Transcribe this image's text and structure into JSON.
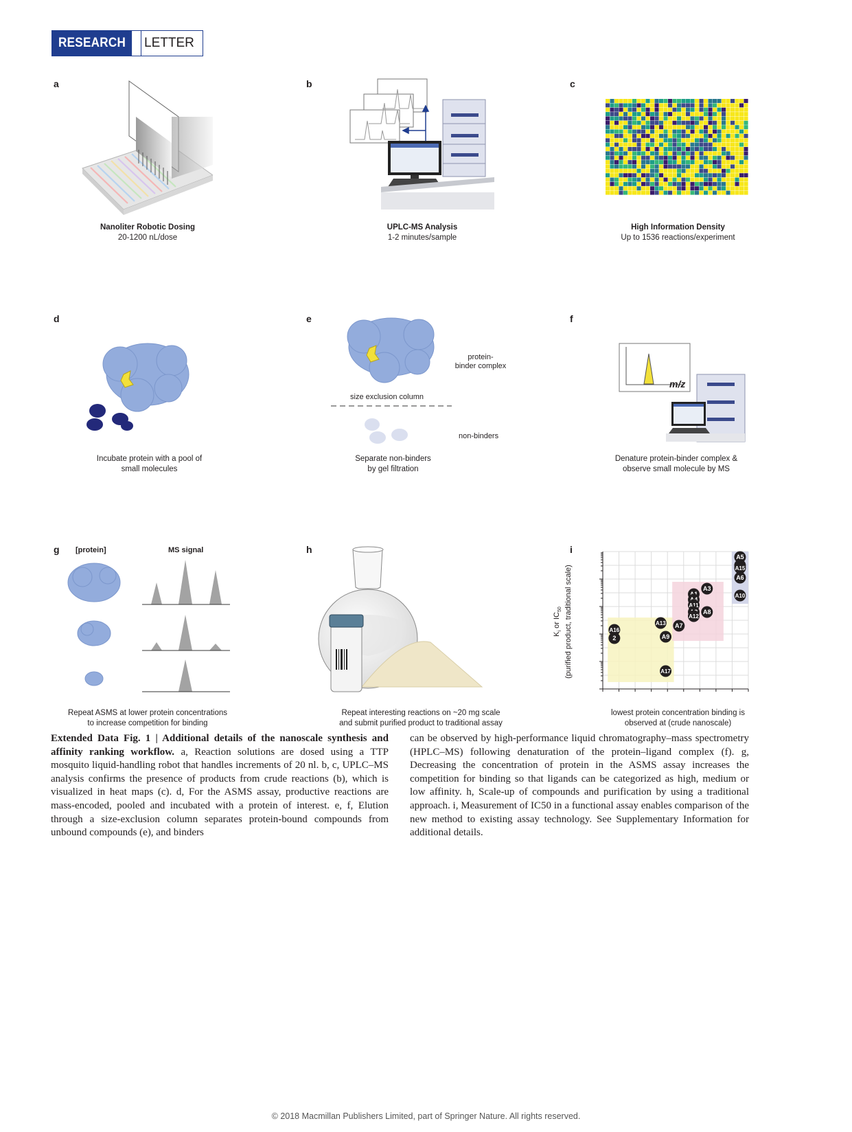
{
  "header": {
    "section": "RESEARCH",
    "type": "LETTER"
  },
  "panels": {
    "a": {
      "label": "a",
      "title": "Nanoliter Robotic Dosing",
      "subtitle": "20-1200 nL/dose"
    },
    "b": {
      "label": "b",
      "title": "UPLC-MS Analysis",
      "subtitle": "1-2 minutes/sample"
    },
    "c": {
      "label": "c",
      "title": "High Information Density",
      "subtitle": "Up to 1536 reactions/experiment"
    },
    "d": {
      "label": "d",
      "caption_line1": "Incubate protein with a pool of",
      "caption_line2": "small molecules"
    },
    "e": {
      "label": "e",
      "complex_line1": "protein-",
      "complex_line2": "binder complex",
      "column": "size exclusion column",
      "nonbinders": "non-binders",
      "caption_line1": "Separate non-binders",
      "caption_line2": "by gel filtration"
    },
    "f": {
      "label": "f",
      "mz": "m/z",
      "caption_line1": "Denature protein-binder complex &",
      "caption_line2": "observe small molecule by MS"
    },
    "g": {
      "label": "g",
      "col1": "[protein]",
      "col2": "MS signal",
      "caption_line1": "Repeat ASMS at lower protein concentrations",
      "caption_line2": "to increase competition for binding"
    },
    "h": {
      "label": "h",
      "caption_line1": "Repeat interesting reactions on ~20 mg scale",
      "caption_line2": "and submit purified product to traditional assay"
    },
    "i": {
      "label": "i",
      "ylabel_line1": "K",
      "ylabel_sub": "i",
      "ylabel_mid": " or IC",
      "ylabel_sub2": "50",
      "ylabel_line2": "(purified product, traditional scale)",
      "xlabel_line1": "lowest protein concentration binding is",
      "xlabel_line2": "observed at (crude nanoscale)"
    }
  },
  "chart_data": {
    "type": "scatter",
    "xlabel": "lowest protein concentration binding is observed at (crude nanoscale)",
    "ylabel": "Ki or IC50 (purified product, traditional scale)",
    "grid": true,
    "points": [
      {
        "label": "A5",
        "x": 8.3,
        "y": 9.6
      },
      {
        "label": "3",
        "x": 8.3,
        "y": 9.0
      },
      {
        "label": "A15",
        "x": 8.3,
        "y": 8.8
      },
      {
        "label": "A6",
        "x": 8.3,
        "y": 8.1
      },
      {
        "label": "A10",
        "x": 8.3,
        "y": 6.8
      },
      {
        "label": "A3",
        "x": 6.3,
        "y": 7.3
      },
      {
        "label": "A1",
        "x": 5.5,
        "y": 6.9
      },
      {
        "label": "A4",
        "x": 5.5,
        "y": 6.5
      },
      {
        "label": "A11",
        "x": 5.5,
        "y": 6.1
      },
      {
        "label": "A2",
        "x": 5.5,
        "y": 5.6
      },
      {
        "label": "A12",
        "x": 5.5,
        "y": 5.3
      },
      {
        "label": "A8",
        "x": 6.3,
        "y": 5.6
      },
      {
        "label": "A7",
        "x": 4.6,
        "y": 4.6
      },
      {
        "label": "A13",
        "x": 3.5,
        "y": 4.8
      },
      {
        "label": "A16",
        "x": 0.7,
        "y": 4.3
      },
      {
        "label": "2",
        "x": 0.7,
        "y": 3.7
      },
      {
        "label": "A9",
        "x": 3.8,
        "y": 3.8
      },
      {
        "label": "A17",
        "x": 3.8,
        "y": 1.3
      }
    ],
    "regions": [
      {
        "level": "low",
        "color": "#f7f3c0"
      },
      {
        "level": "medium",
        "color": "#f5d3dd"
      },
      {
        "level": "high",
        "color": "#cdd0e6"
      }
    ]
  },
  "legend": {
    "lead": "Extended Data Fig. 1 | Additional details of the nanoscale synthesis and affinity ranking workflow.",
    "left_rest": "a, Reaction solutions are dosed using a TTP mosquito liquid-handling robot that handles increments of 20 nl. b, c, UPLC–MS analysis confirms the presence of products from crude reactions (b), which is visualized in heat maps (c). d, For the ASMS assay, productive reactions are mass-encoded, pooled and incubated with a protein of interest. e, f, Elution through a size-exclusion column separates protein-bound compounds from unbound compounds (e), and binders",
    "right": "can be observed by high-performance liquid chromatography–mass spectrometry (HPLC–MS) following denaturation of the protein–ligand complex (f). g, Decreasing the concentration of protein in the ASMS assay increases the competition for binding so that ligands can be categorized as high, medium or low affinity. h, Scale-up of compounds and purification by using a traditional approach. i, Measurement of IC50 in a functional assay enables comparison of the new method to existing assay technology. See Supplementary Information for additional details."
  },
  "footer": "© 2018 Macmillan Publishers Limited, part of Springer Nature. All rights reserved."
}
